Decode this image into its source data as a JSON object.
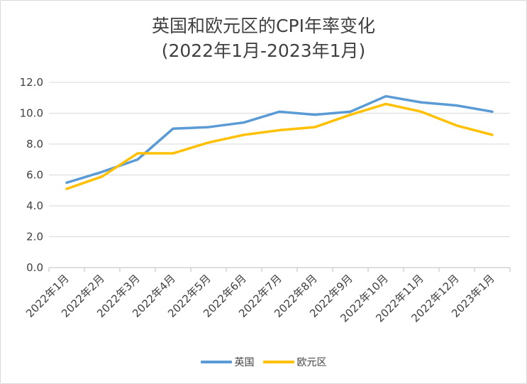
{
  "chart_data": {
    "type": "line",
    "title": "英国和欧元区的CPI年率变化",
    "subtitle": "(2022年1月-2023年1月)",
    "categories": [
      "2022年1月",
      "2022年2月",
      "2022年3月",
      "2022年4月",
      "2022年5月",
      "2022年6月",
      "2022年7月",
      "2022年8月",
      "2022年9月",
      "2022年10月",
      "2022年11月",
      "2022年12月",
      "2023年1月"
    ],
    "series": [
      {
        "name": "英国",
        "color": "#5b9bd5",
        "values": [
          5.5,
          6.2,
          7.0,
          9.0,
          9.1,
          9.4,
          10.1,
          9.9,
          10.1,
          11.1,
          10.7,
          10.5,
          10.1
        ]
      },
      {
        "name": "欧元区",
        "color": "#ffc000",
        "values": [
          5.1,
          5.9,
          7.4,
          7.4,
          8.1,
          8.6,
          8.9,
          9.1,
          9.9,
          10.6,
          10.1,
          9.2,
          8.6
        ]
      }
    ],
    "ylim": [
      0,
      12
    ],
    "yticks": [
      "0.0",
      "2.0",
      "4.0",
      "6.0",
      "8.0",
      "10.0",
      "12.0"
    ],
    "grid": true,
    "legend_position": "bottom",
    "xlabel": "",
    "ylabel": ""
  }
}
